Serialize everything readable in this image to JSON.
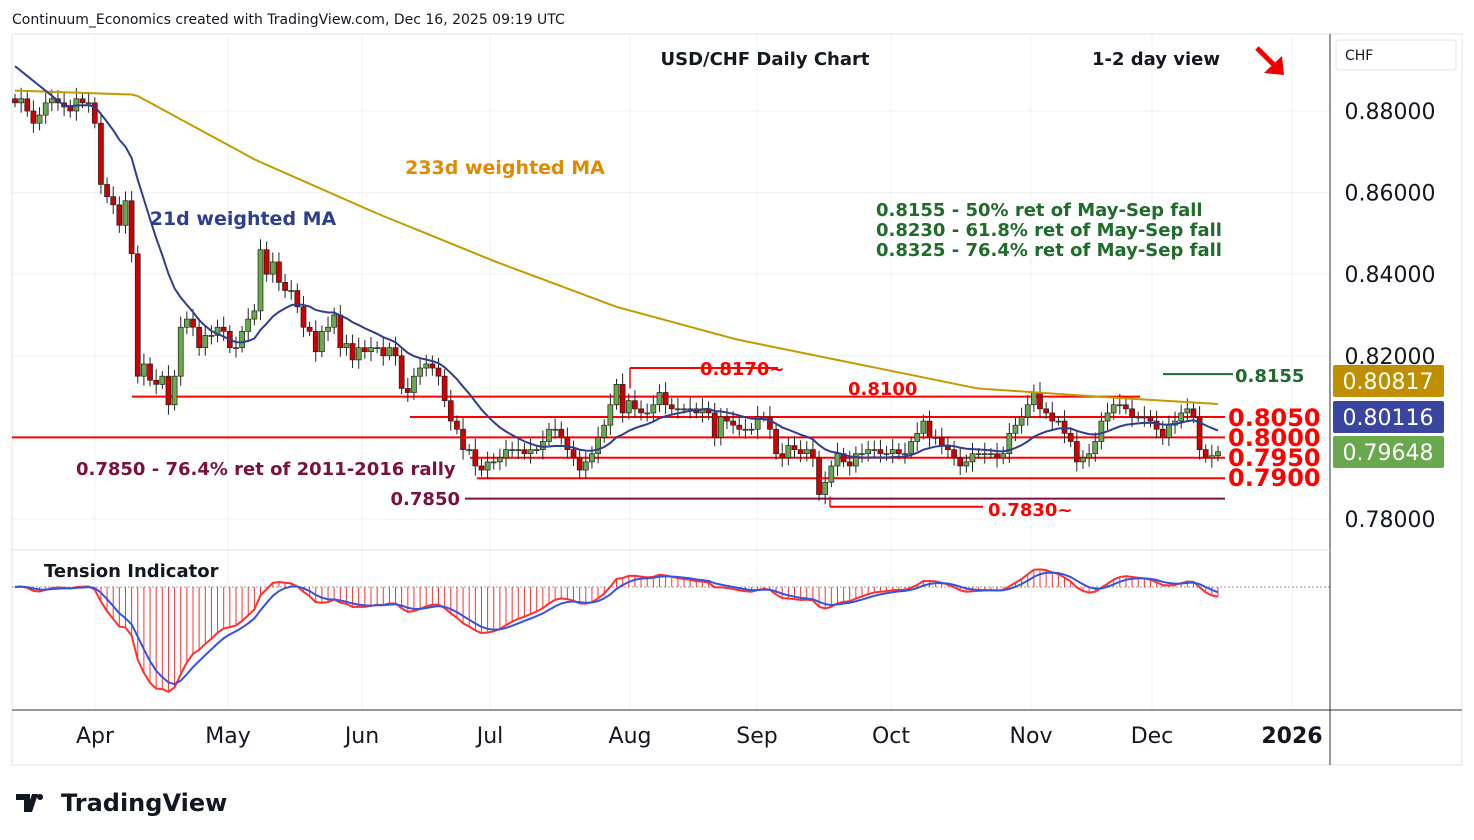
{
  "header": {
    "credit": "Continuum_Economics created with TradingView.com, Dec 16, 2025 09:19 UTC"
  },
  "chart_data": {
    "type": "candlestick",
    "title": "USD/CHF Daily Chart",
    "view_label": "1-2 day view",
    "view_direction": "down",
    "currency": "CHF",
    "y_ticks": [
      "0.88000",
      "0.86000",
      "0.84000",
      "0.82000",
      "0.78000"
    ],
    "y_tick_values": [
      0.88,
      0.86,
      0.84,
      0.82,
      0.78
    ],
    "ylim": [
      0.774,
      0.8915
    ],
    "x_ticks": [
      "Apr",
      "May",
      "Jun",
      "Jul",
      "Aug",
      "Sep",
      "Oct",
      "Nov",
      "Dec",
      "2026"
    ],
    "closes": [
      0.882,
      0.883,
      0.88,
      0.877,
      0.879,
      0.882,
      0.883,
      0.882,
      0.881,
      0.88,
      0.883,
      0.882,
      0.882,
      0.877,
      0.862,
      0.859,
      0.857,
      0.852,
      0.858,
      0.845,
      0.815,
      0.818,
      0.814,
      0.813,
      0.815,
      0.808,
      0.815,
      0.827,
      0.829,
      0.827,
      0.822,
      0.825,
      0.825,
      0.827,
      0.826,
      0.822,
      0.822,
      0.826,
      0.829,
      0.831,
      0.846,
      0.84,
      0.843,
      0.838,
      0.836,
      0.836,
      0.832,
      0.827,
      0.826,
      0.821,
      0.826,
      0.827,
      0.83,
      0.822,
      0.823,
      0.819,
      0.822,
      0.821,
      0.822,
      0.822,
      0.82,
      0.822,
      0.82,
      0.812,
      0.811,
      0.815,
      0.817,
      0.818,
      0.817,
      0.815,
      0.809,
      0.804,
      0.802,
      0.797,
      0.797,
      0.793,
      0.792,
      0.794,
      0.794,
      0.795,
      0.797,
      0.797,
      0.797,
      0.796,
      0.797,
      0.797,
      0.799,
      0.802,
      0.802,
      0.8,
      0.797,
      0.795,
      0.792,
      0.794,
      0.796,
      0.8,
      0.803,
      0.808,
      0.813,
      0.806,
      0.809,
      0.807,
      0.806,
      0.806,
      0.808,
      0.811,
      0.808,
      0.807,
      0.807,
      0.807,
      0.807,
      0.806,
      0.807,
      0.806,
      0.8,
      0.805,
      0.804,
      0.803,
      0.802,
      0.802,
      0.802,
      0.805,
      0.805,
      0.802,
      0.796,
      0.795,
      0.798,
      0.797,
      0.796,
      0.797,
      0.795,
      0.786,
      0.789,
      0.793,
      0.796,
      0.794,
      0.793,
      0.796,
      0.796,
      0.797,
      0.797,
      0.796,
      0.796,
      0.797,
      0.796,
      0.796,
      0.799,
      0.801,
      0.804,
      0.8,
      0.8,
      0.798,
      0.797,
      0.795,
      0.793,
      0.794,
      0.796,
      0.796,
      0.796,
      0.796,
      0.795,
      0.796,
      0.801,
      0.803,
      0.805,
      0.808,
      0.811,
      0.807,
      0.806,
      0.804,
      0.804,
      0.801,
      0.799,
      0.794,
      0.795,
      0.796,
      0.799,
      0.804,
      0.806,
      0.808,
      0.808,
      0.807,
      0.805,
      0.805,
      0.805,
      0.804,
      0.802,
      0.8,
      0.803,
      0.804,
      0.806,
      0.807,
      0.805,
      0.797,
      0.795,
      0.7955,
      0.79648
    ],
    "ma233": {
      "label": "233d weighted MA",
      "color": "#c49a00",
      "values": [
        0.885,
        0.884,
        0.868,
        0.855,
        0.843,
        0.832,
        0.824,
        0.818,
        0.812,
        0.81,
        0.80817
      ]
    },
    "ma21": {
      "label": "21d weighted MA",
      "color": "#2f3d8f",
      "last": "0.80116"
    },
    "last_price": "0.79648",
    "badges": [
      {
        "text": "0.80817",
        "color": "#c08f00"
      },
      {
        "text": "0.80116",
        "color": "#3a45a0"
      },
      {
        "text": "0.79648",
        "color": "#6aa84f"
      }
    ],
    "levels": [
      {
        "value": 0.817,
        "label": "0.8170~",
        "color": "#ff0000"
      },
      {
        "value": 0.81,
        "label": "0.8100",
        "color": "#ff0000"
      },
      {
        "value": 0.805,
        "label": "0.8050",
        "color": "#ff0000"
      },
      {
        "value": 0.8,
        "label": "0.8000",
        "color": "#ff0000"
      },
      {
        "value": 0.795,
        "label": "0.7950",
        "color": "#ff0000"
      },
      {
        "value": 0.79,
        "label": "0.7900",
        "color": "#ff0000"
      },
      {
        "value": 0.785,
        "label": "0.7850",
        "color": "#7b1040"
      },
      {
        "value": 0.783,
        "label": "0.7830~",
        "color": "#ff0000"
      },
      {
        "value": 0.8155,
        "label": "0.8155",
        "color": "#1e6b2a"
      }
    ],
    "annotations": {
      "fib": [
        "0.8155 - 50% ret of May-Sep fall",
        "0.8230 - 61.8% ret of May-Sep fall",
        "0.8325 - 76.4% ret of May-Sep fall"
      ],
      "long_term": "0.7850 - 76.4% ret of 2011-2016 rally"
    },
    "indicator": {
      "label": "Tension Indicator"
    },
    "colors": {
      "up": "#6aa84f",
      "down": "#cc0000",
      "level": "#ff0000"
    }
  },
  "footer": {
    "brand": "TradingView"
  }
}
